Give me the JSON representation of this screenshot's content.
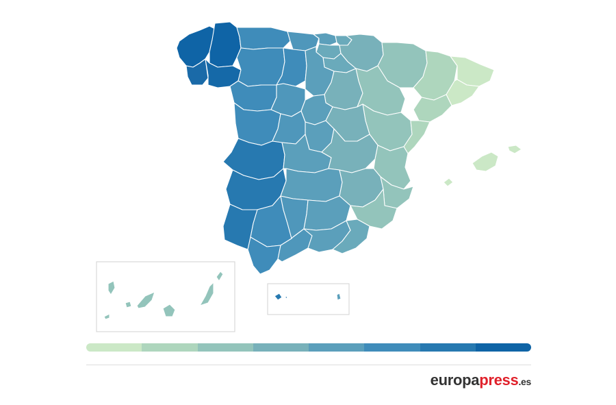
{
  "legend": {
    "colors": [
      "#cbe8c6",
      "#aed6bd",
      "#93c4bb",
      "#78b1ba",
      "#5b9fbb",
      "#3f8cba",
      "#2779b0",
      "#0f64a6"
    ]
  },
  "logo": {
    "part1": "europa",
    "part2": "press",
    "part3": ".es",
    "color_dark": "#333333",
    "color_accent": "#e0202a"
  }
}
